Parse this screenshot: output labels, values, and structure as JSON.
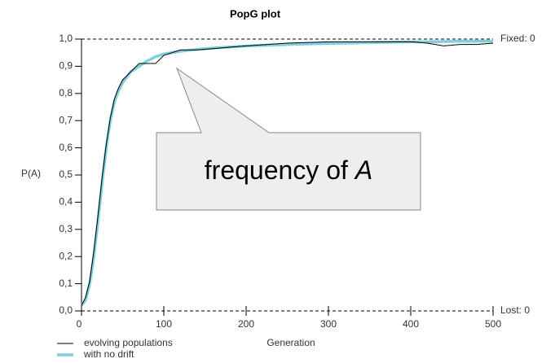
{
  "chart_data": {
    "type": "line",
    "title": "PopG plot",
    "xlabel": "Generation",
    "ylabel": "P(A)",
    "right_labels": {
      "top": "Fixed: 0",
      "bottom": "Lost: 0"
    },
    "annotation": {
      "text": "frequency of",
      "italic": "A"
    },
    "x": [
      0,
      5,
      10,
      15,
      20,
      25,
      30,
      35,
      40,
      45,
      50,
      60,
      70,
      80,
      90,
      100,
      110,
      120,
      140,
      160,
      180,
      200,
      250,
      300,
      350,
      400,
      420,
      440,
      460,
      480,
      500
    ],
    "series": [
      {
        "name": "evolving populations",
        "color": "#000000",
        "values": [
          0.02,
          0.05,
          0.11,
          0.22,
          0.35,
          0.49,
          0.61,
          0.71,
          0.78,
          0.82,
          0.85,
          0.88,
          0.91,
          0.91,
          0.91,
          0.94,
          0.95,
          0.96,
          0.96,
          0.965,
          0.97,
          0.975,
          0.985,
          0.99,
          0.99,
          0.99,
          0.985,
          0.975,
          0.98,
          0.98,
          0.985
        ]
      },
      {
        "name": "with no drift",
        "color": "#7fcfdc",
        "values": [
          0.02,
          0.04,
          0.1,
          0.2,
          0.33,
          0.47,
          0.6,
          0.7,
          0.77,
          0.81,
          0.84,
          0.88,
          0.9,
          0.92,
          0.935,
          0.945,
          0.95,
          0.955,
          0.962,
          0.967,
          0.971,
          0.974,
          0.98,
          0.984,
          0.987,
          0.99,
          0.99,
          0.991,
          0.992,
          0.992,
          0.992
        ]
      }
    ],
    "xlim": [
      0,
      500
    ],
    "xticks": [
      0,
      100,
      200,
      300,
      400,
      500
    ],
    "ylim": [
      0,
      1
    ],
    "yticks": [
      {
        "value": 0,
        "label": "0,0"
      },
      {
        "value": 0.1,
        "label": "0,1"
      },
      {
        "value": 0.2,
        "label": "0,2"
      },
      {
        "value": 0.3,
        "label": "0,3"
      },
      {
        "value": 0.4,
        "label": "0,4"
      },
      {
        "value": 0.5,
        "label": "0,5"
      },
      {
        "value": 0.6,
        "label": "0,6"
      },
      {
        "value": 0.7,
        "label": "0,7"
      },
      {
        "value": 0.8,
        "label": "0,8"
      },
      {
        "value": 0.9,
        "label": "0,9"
      },
      {
        "value": 1,
        "label": "1,0"
      }
    ]
  }
}
